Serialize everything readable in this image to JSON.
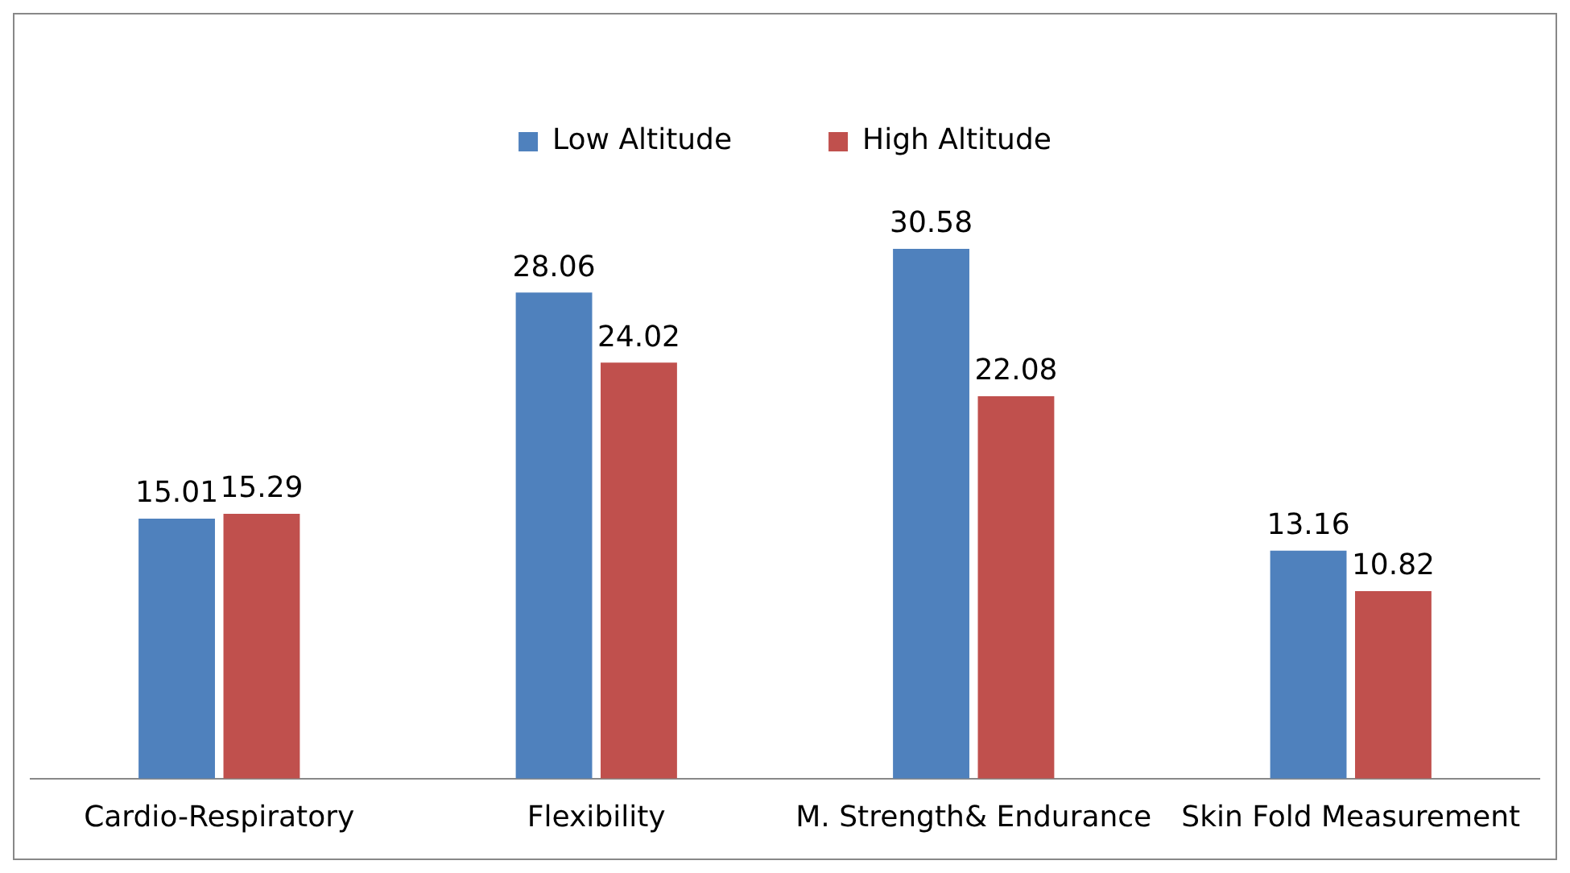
{
  "chart_data": {
    "type": "bar",
    "categories": [
      "Cardio-Respiratory",
      "Flexibility",
      "M. Strength& Endurance",
      "Skin Fold Measurement"
    ],
    "series": [
      {
        "name": "Low Altitude",
        "color": "#4f81bd",
        "values": [
          15.01,
          28.06,
          30.58,
          13.16
        ]
      },
      {
        "name": "High Altitude",
        "color": "#c0504d",
        "values": [
          15.29,
          24.02,
          22.08,
          10.82
        ]
      }
    ],
    "data_labels": true,
    "legend": "top",
    "grid": false
  }
}
